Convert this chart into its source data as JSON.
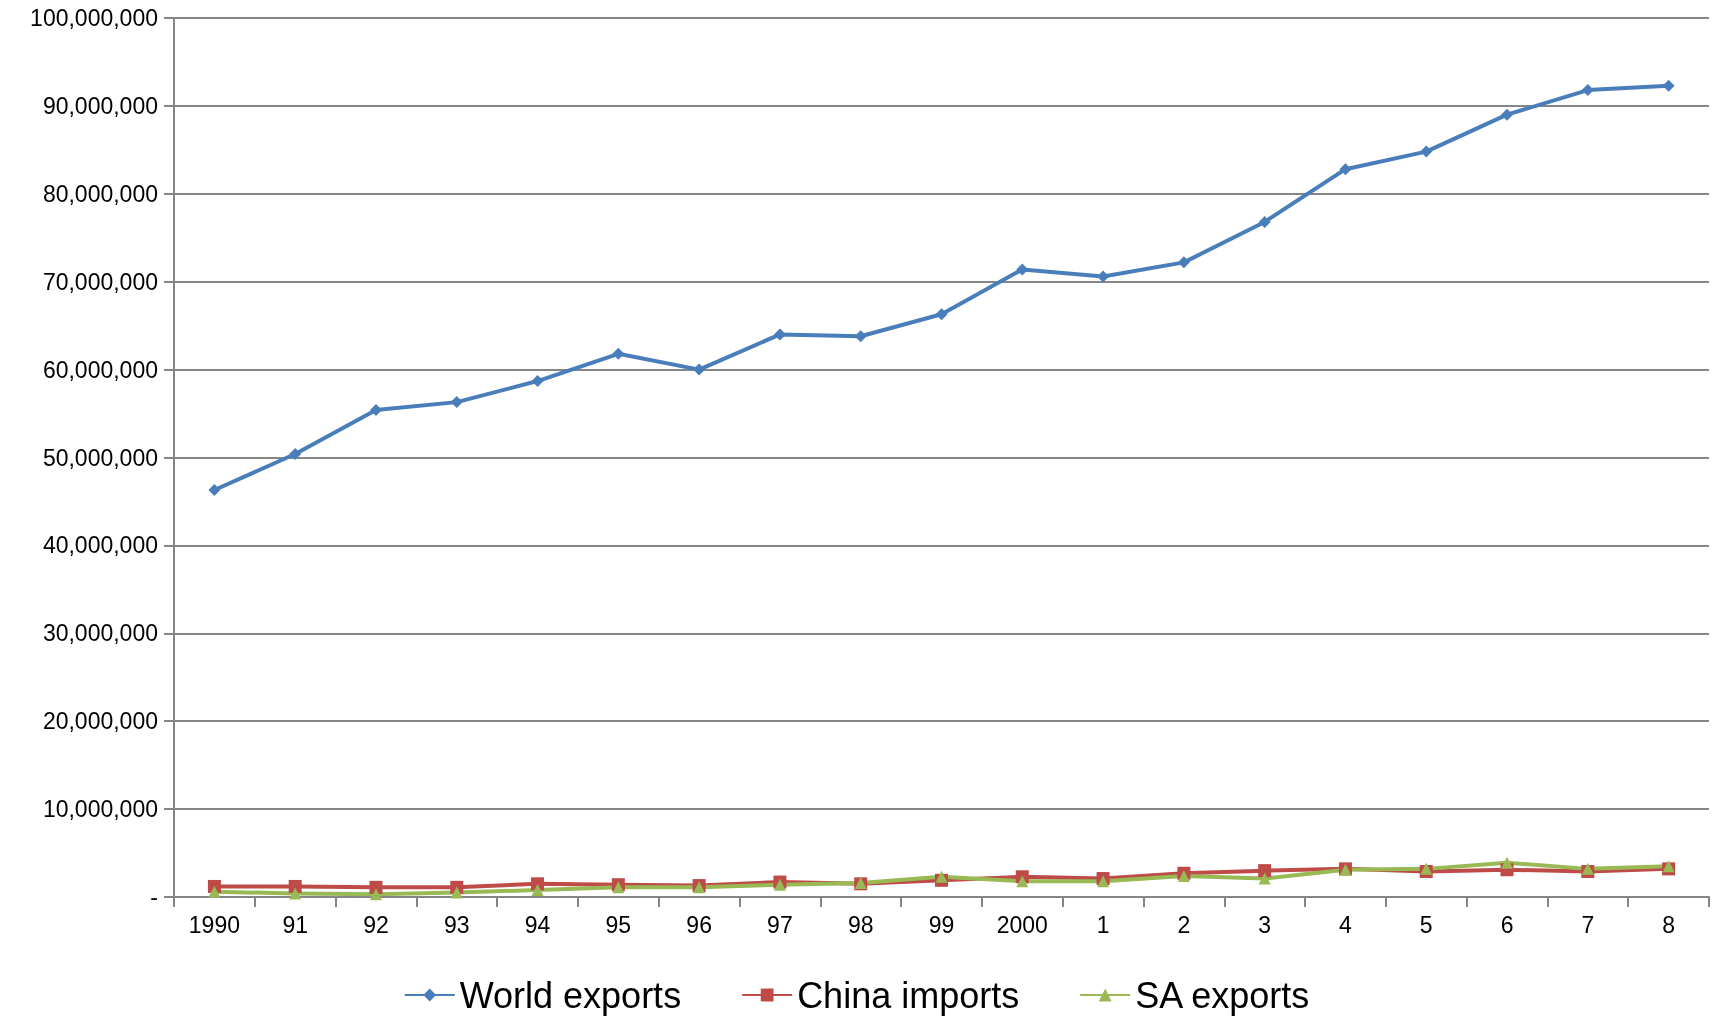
{
  "chart_data": {
    "type": "line",
    "categories": [
      "1990",
      "91",
      "92",
      "93",
      "94",
      "95",
      "96",
      "97",
      "98",
      "99",
      "2000",
      "1",
      "2",
      "3",
      "4",
      "5",
      "6",
      "7",
      "8"
    ],
    "series": [
      {
        "name": "World exports",
        "color": "#4a7ebb",
        "marker": "diamond",
        "values": [
          46300000,
          50400000,
          55400000,
          56300000,
          58700000,
          61800000,
          60000000,
          64000000,
          63800000,
          66300000,
          71400000,
          70600000,
          72200000,
          76800000,
          82800000,
          84800000,
          89000000,
          91800000,
          92300000
        ]
      },
      {
        "name": "China imports",
        "color": "#be4b48",
        "marker": "square",
        "values": [
          1200000,
          1200000,
          1100000,
          1100000,
          1500000,
          1400000,
          1300000,
          1700000,
          1500000,
          1900000,
          2300000,
          2100000,
          2700000,
          3000000,
          3200000,
          2900000,
          3100000,
          2900000,
          3200000
        ]
      },
      {
        "name": "SA exports",
        "color": "#98b954",
        "marker": "triangle",
        "values": [
          600000,
          400000,
          300000,
          500000,
          800000,
          1100000,
          1100000,
          1400000,
          1600000,
          2300000,
          1800000,
          1800000,
          2400000,
          2100000,
          3100000,
          3200000,
          3900000,
          3200000,
          3500000
        ]
      }
    ],
    "ylim": [
      0,
      100000000
    ],
    "yticks": [
      {
        "value": 0,
        "label": "-"
      },
      {
        "value": 10000000,
        "label": "10,000,000"
      },
      {
        "value": 20000000,
        "label": "20,000,000"
      },
      {
        "value": 30000000,
        "label": "30,000,000"
      },
      {
        "value": 40000000,
        "label": "40,000,000"
      },
      {
        "value": 50000000,
        "label": "50,000,000"
      },
      {
        "value": 60000000,
        "label": "60,000,000"
      },
      {
        "value": 70000000,
        "label": "70,000,000"
      },
      {
        "value": 80000000,
        "label": "80,000,000"
      },
      {
        "value": 90000000,
        "label": "90,000,000"
      },
      {
        "value": 100000000,
        "label": "100,000,000"
      }
    ],
    "grid": "y",
    "legend": "bottom",
    "line_style": "solid"
  }
}
